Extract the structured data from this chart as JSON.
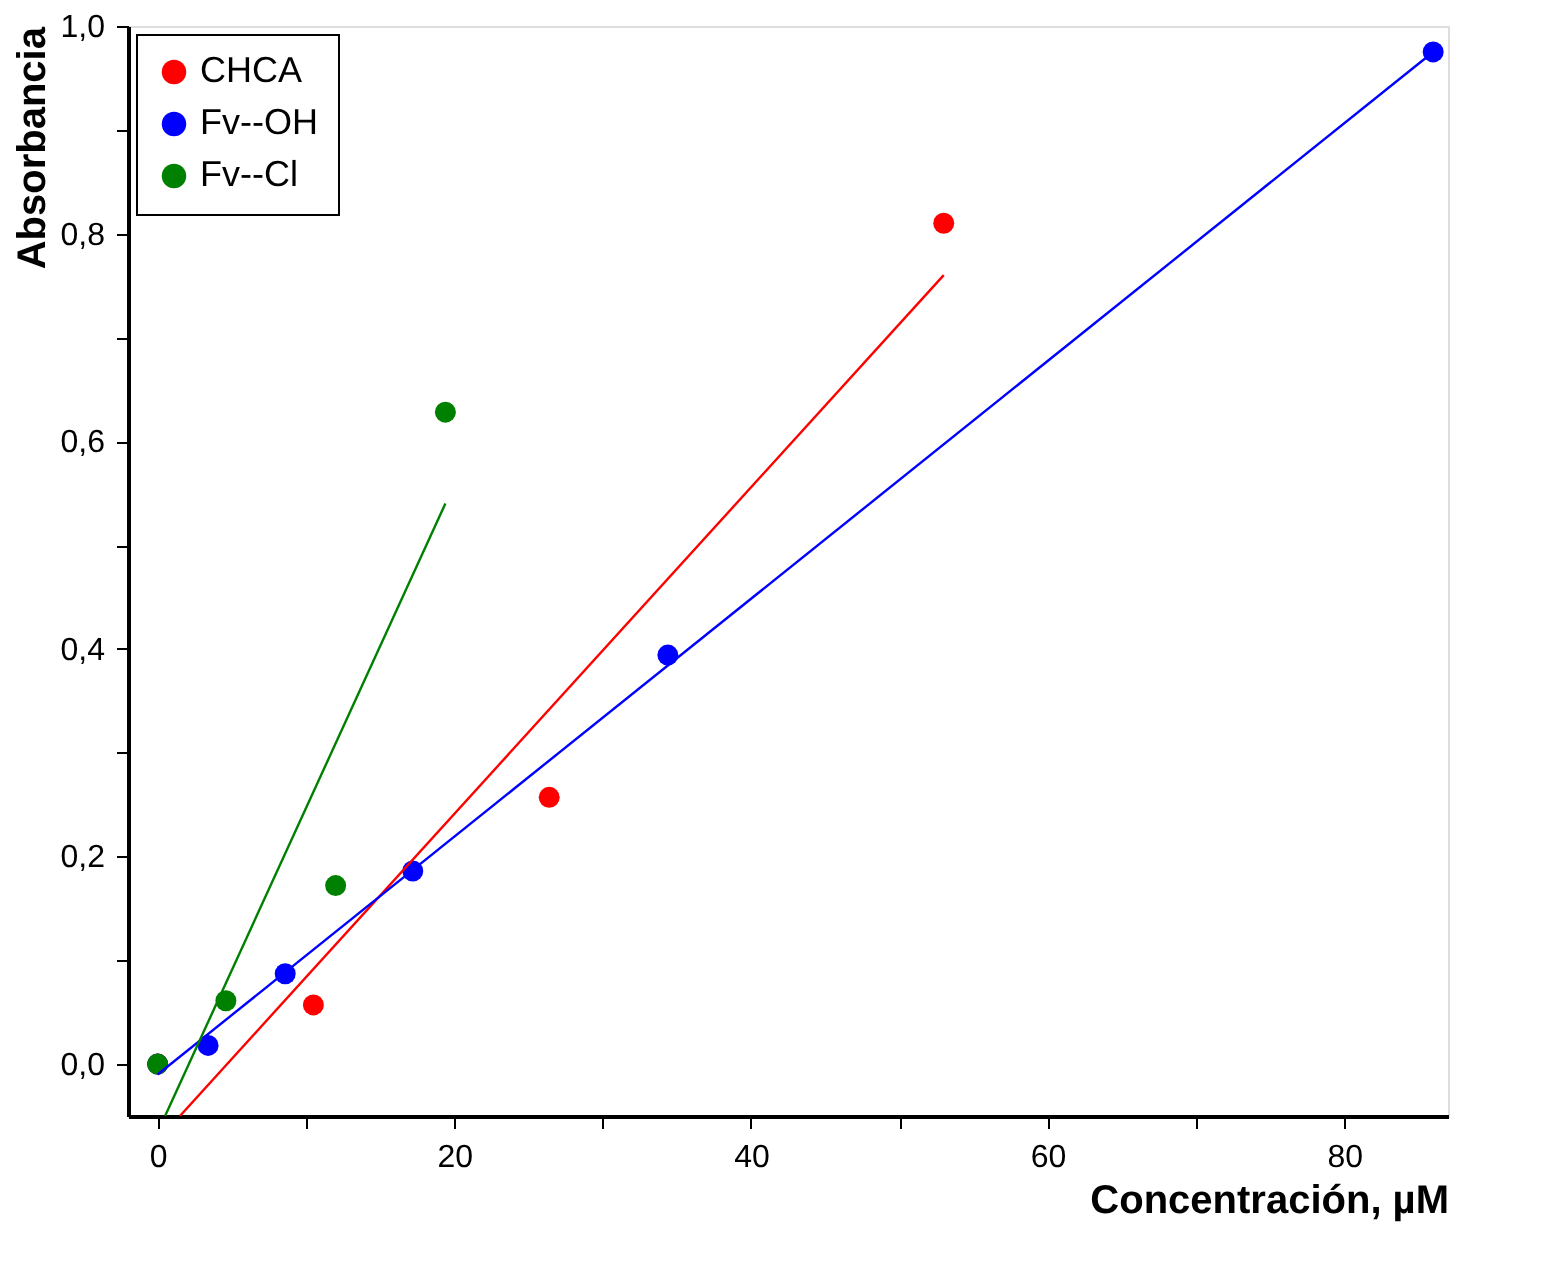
{
  "chart_data": {
    "type": "scatter",
    "xlabel": "Concentración, µM",
    "ylabel": "Absorbancia",
    "xlim": [
      -2,
      87
    ],
    "ylim": [
      -0.05,
      1.0
    ],
    "xticks": [
      0,
      {
        "value": 10,
        "label": null
      },
      20,
      {
        "value": 30,
        "label": null
      },
      40,
      {
        "value": 50,
        "label": null
      },
      60,
      {
        "value": 70,
        "label": null
      },
      80
    ],
    "yticks": [
      {
        "value": 0,
        "label": "0,0"
      },
      {
        "value": 0.1,
        "label": null
      },
      {
        "value": 0.2,
        "label": "0,2"
      },
      {
        "value": 0.3,
        "label": null
      },
      {
        "value": 0.4,
        "label": "0,4"
      },
      {
        "value": 0.5,
        "label": null
      },
      {
        "value": 0.6,
        "label": "0,6"
      },
      {
        "value": 0.7,
        "label": null
      },
      {
        "value": 0.8,
        "label": "0,8"
      },
      {
        "value": 0.9,
        "label": null
      },
      {
        "value": 1.0,
        "label": "1,0"
      }
    ],
    "legend": "top left",
    "grid": false,
    "series": [
      {
        "name": "CHCA",
        "marker": "circle",
        "color": "#ff0000",
        "x": [
          0,
          10.5,
          26.4,
          53
        ],
        "values": [
          0,
          0.057,
          0.257,
          0.81
        ]
      },
      {
        "name": "Fv--OH",
        "marker": "circle",
        "color": "#0000ff",
        "x": [
          0,
          3.4,
          8.6,
          17.2,
          34.4,
          86
        ],
        "values": [
          0,
          0.018,
          0.087,
          0.186,
          0.394,
          0.975
        ]
      },
      {
        "name": "Fv--Cl",
        "marker": "circle",
        "color": "#008000",
        "x": [
          0,
          4.6,
          12,
          19.4
        ],
        "values": [
          0,
          0.061,
          0.172,
          0.628
        ]
      },
      {
        "type": "line",
        "marker": "none",
        "color": "#ff0000",
        "x": [
          1.5,
          53
        ],
        "values": [
          -0.05,
          0.76
        ]
      },
      {
        "type": "line",
        "marker": "none",
        "color": "#0000ff",
        "x": [
          0,
          86
        ],
        "values": [
          -0.01,
          0.975
        ]
      },
      {
        "type": "line",
        "marker": "none",
        "color": "#008000",
        "x": [
          0.5,
          19.4
        ],
        "values": [
          -0.05,
          0.54
        ]
      }
    ]
  }
}
